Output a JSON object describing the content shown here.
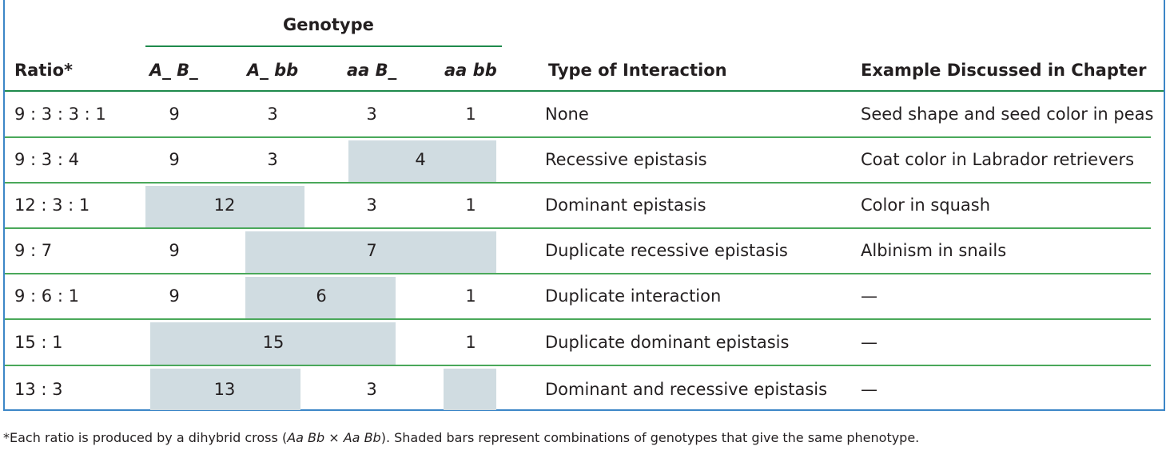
{
  "header": {
    "genotype_group": "Genotype",
    "ratio": "Ratio*",
    "g1_a": "A_",
    "g1_b": "B_",
    "g2_a": "A_",
    "g2_b": "bb",
    "g3_a": "aa",
    "g3_b": "B_",
    "g4_a": "aa",
    "g4_b": "bb",
    "interaction": "Type of Interaction",
    "example": "Example Discussed in Chapter"
  },
  "rows": [
    {
      "ratio": "9 : 3 : 3 : 1",
      "c1": "9",
      "c2": "3",
      "c3": "3",
      "c4": "1",
      "interaction": "None",
      "example": "Seed shape and seed color in peas"
    },
    {
      "ratio": "9 : 3 : 4",
      "c1": "9",
      "c2": "3",
      "merged": "4",
      "interaction": "Recessive epistasis",
      "example": "Coat color in Labrador retrievers"
    },
    {
      "ratio": "12 : 3 : 1",
      "merged": "12",
      "c3": "3",
      "c4": "1",
      "interaction": "Dominant epistasis",
      "example": "Color in squash"
    },
    {
      "ratio": "9 : 7",
      "c1": "9",
      "merged": "7",
      "interaction": "Duplicate recessive epistasis",
      "example": "Albinism in snails"
    },
    {
      "ratio": "9 : 6 : 1",
      "c1": "9",
      "merged": "6",
      "c4": "1",
      "interaction": "Duplicate interaction",
      "example": "—"
    },
    {
      "ratio": "15 : 1",
      "merged": "15",
      "c4": "1",
      "interaction": "Duplicate dominant epistasis",
      "example": "—"
    },
    {
      "ratio": "13 : 3",
      "merged": "13",
      "c3": "3",
      "interaction": "Dominant and recessive epistasis",
      "example": "—"
    }
  ],
  "footnote": {
    "p1": "*Each ratio is produced by a dihybrid cross (",
    "cross_a": "Aa Bb",
    "times": " × ",
    "cross_b": "Aa Bb",
    "p2": "). Shaded bars represent combinations of genotypes that give the same phenotype."
  },
  "colors": {
    "frame": "#3c86c7",
    "rule": "#4aa85a",
    "shade": "#d0dce1"
  }
}
